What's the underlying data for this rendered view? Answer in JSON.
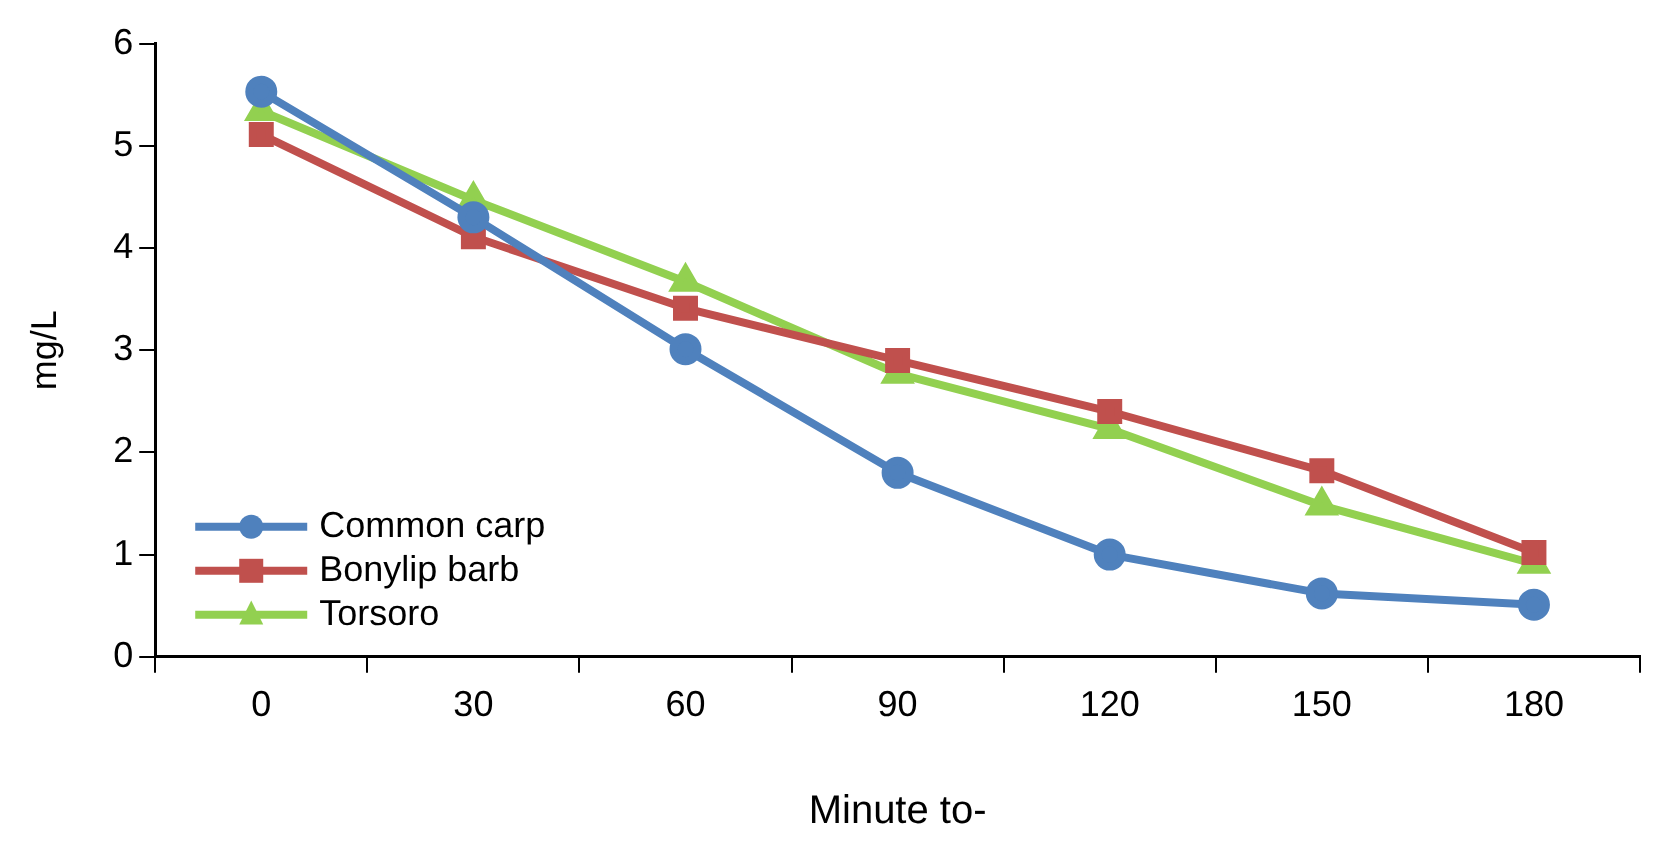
{
  "chart_data": {
    "type": "line",
    "xlabel": "Minute to-",
    "ylabel": "mg/L",
    "categories": [
      "0",
      "30",
      "60",
      "90",
      "120",
      "150",
      "180"
    ],
    "series": [
      {
        "name": "Common carp",
        "color": "#4f81bd",
        "marker": "circle",
        "values": [
          5.53,
          4.3,
          3.01,
          1.8,
          1.0,
          0.62,
          0.51
        ]
      },
      {
        "name": "Bonylip barb",
        "color": "#c0504d",
        "marker": "square",
        "values": [
          5.11,
          4.11,
          3.41,
          2.9,
          2.4,
          1.82,
          1.02
        ]
      },
      {
        "name": "Torsoro",
        "color": "#92d050",
        "marker": "triangle",
        "values": [
          5.34,
          4.47,
          3.67,
          2.77,
          2.23,
          1.48,
          0.91
        ]
      }
    ],
    "ylim": [
      0,
      6
    ],
    "yticks": [
      0,
      1,
      2,
      3,
      4,
      5,
      6
    ],
    "grid": false,
    "legend": "bottom left",
    "line_style": "solid"
  }
}
